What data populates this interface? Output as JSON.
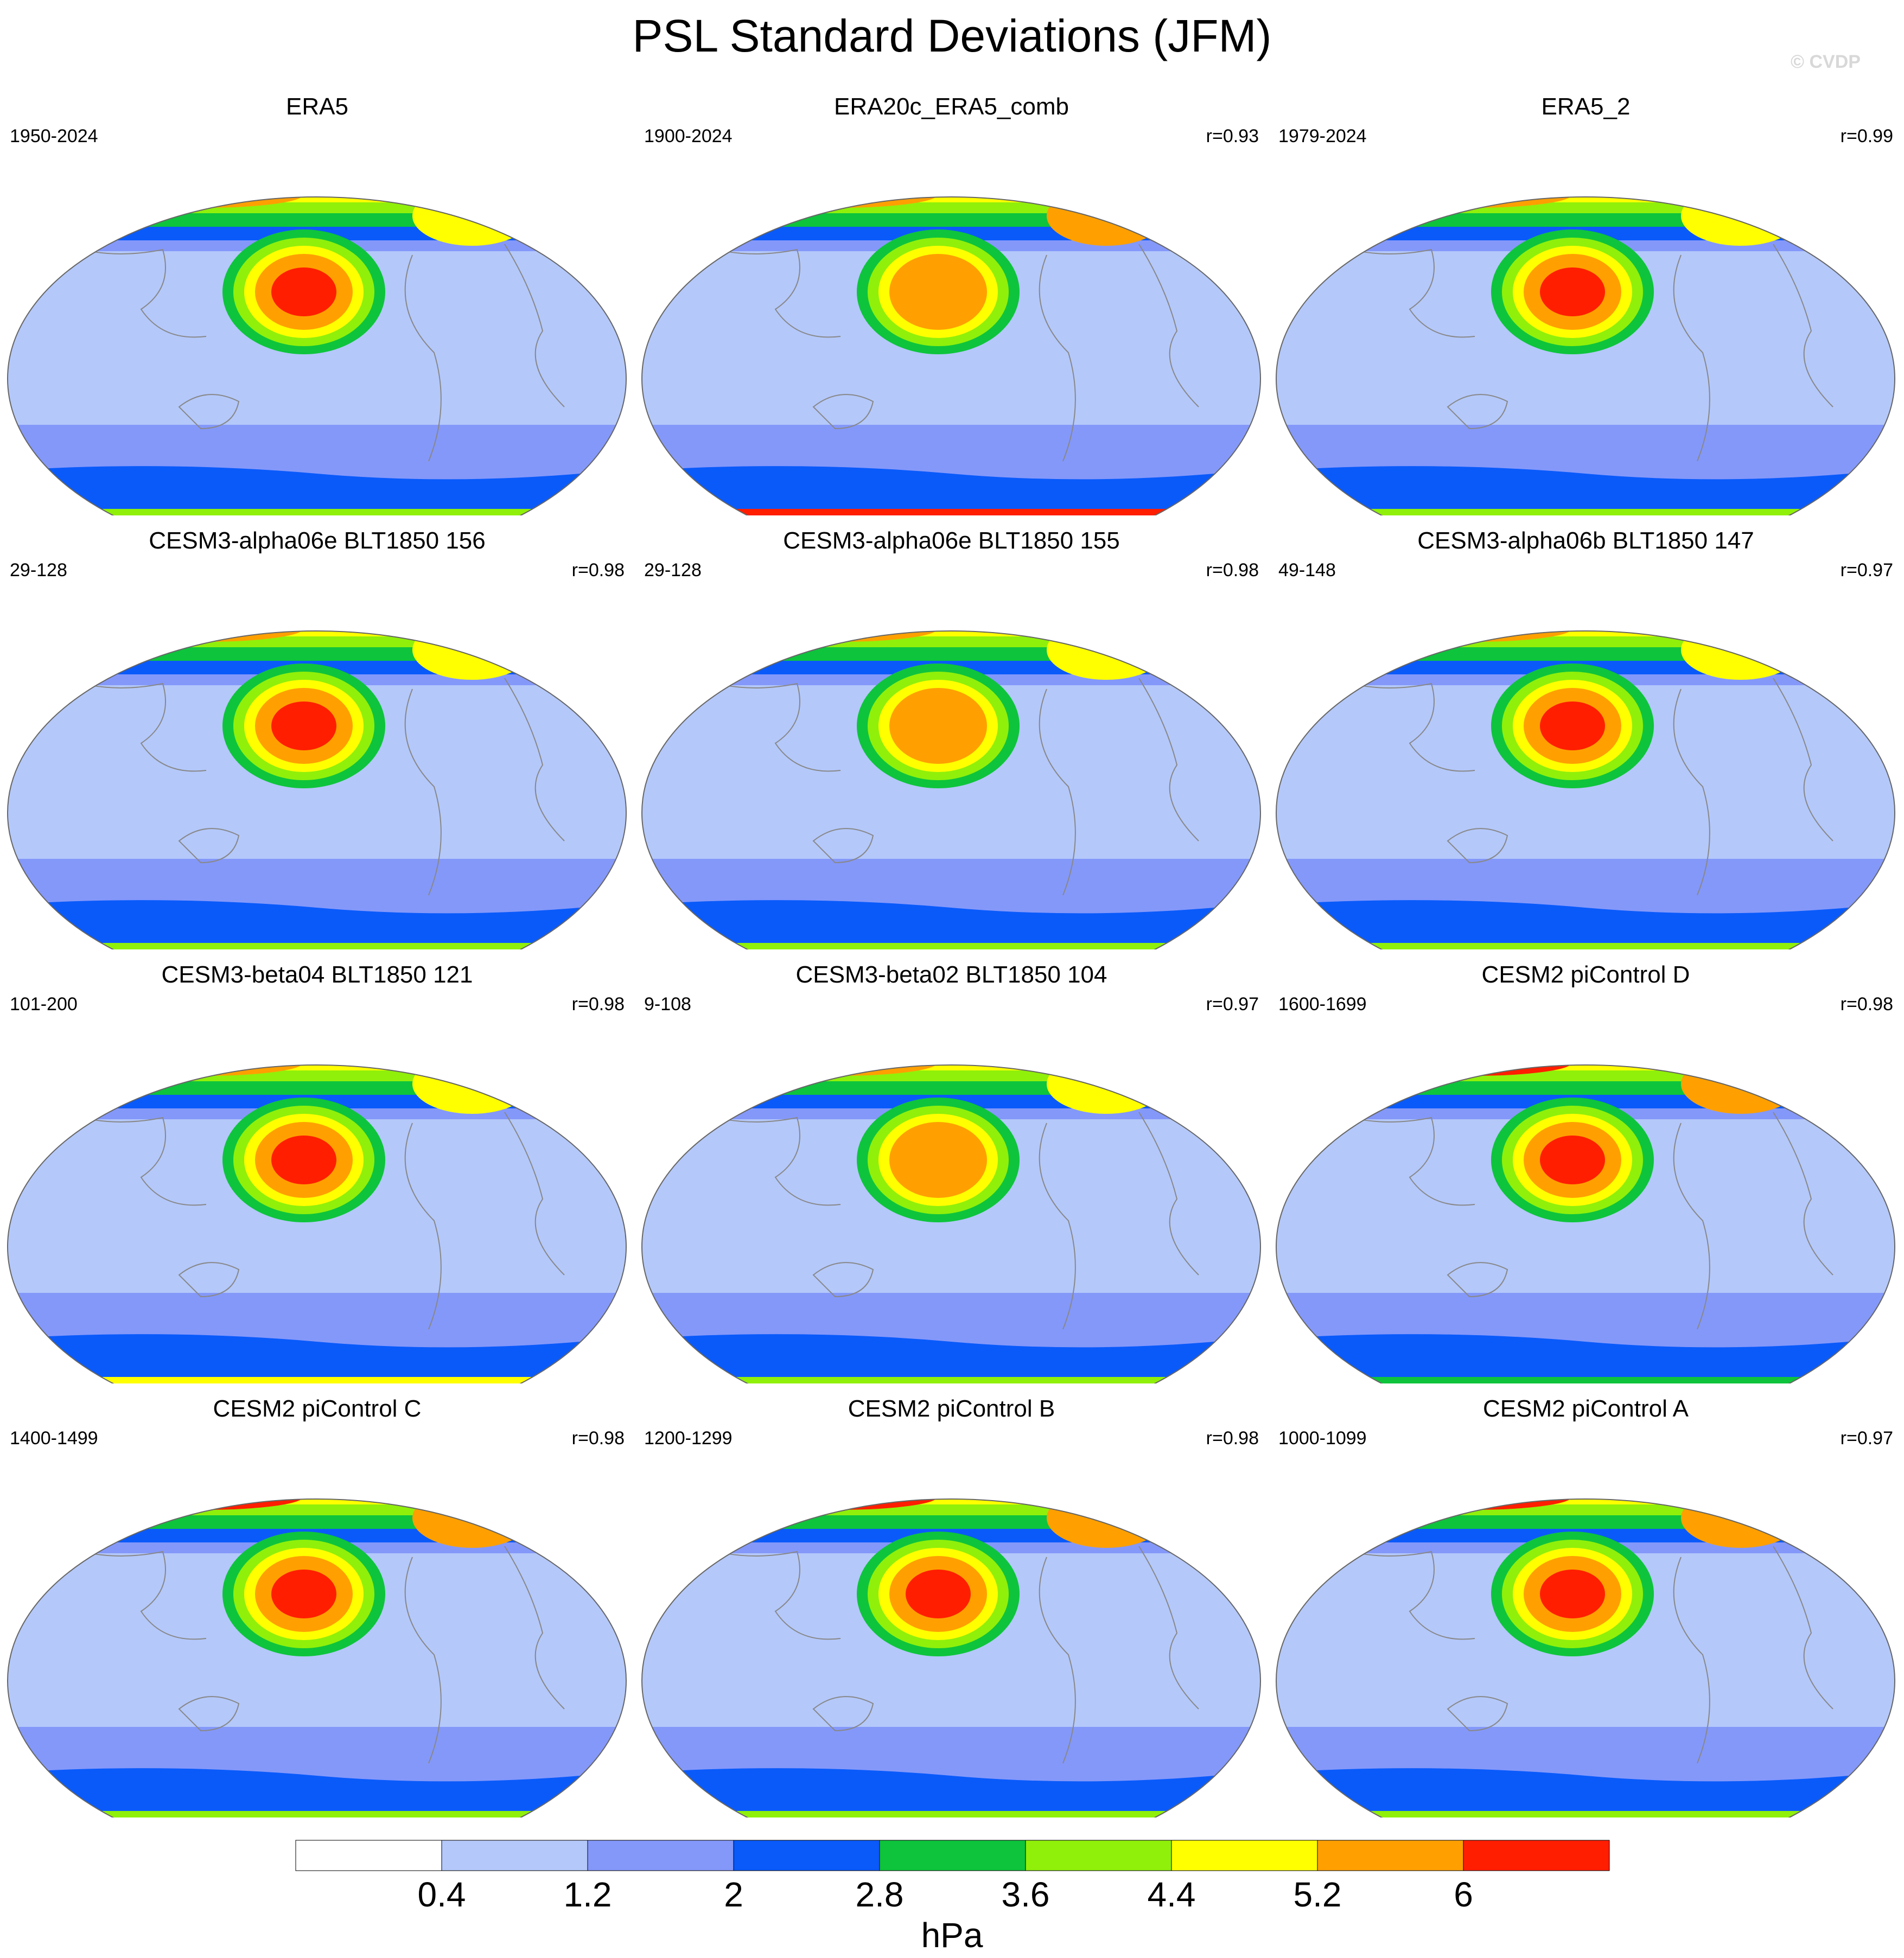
{
  "title": "PSL Standard Deviations (JFM)",
  "watermark": "© CVDP",
  "units": "hPa",
  "colorbar": {
    "levels": [
      "0.4",
      "1.2",
      "2",
      "2.8",
      "3.6",
      "4.4",
      "5.2",
      "6"
    ],
    "colors": [
      "#ffffff",
      "#b4c8fa",
      "#8498fa",
      "#0a5afa",
      "#0ec43c",
      "#90f00a",
      "#ffff00",
      "#ffa000",
      "#ff1e00"
    ]
  },
  "panels": [
    {
      "title": "ERA5",
      "period": "1950-2024",
      "corr": "",
      "npole": 5.7,
      "aleutian": 6.2,
      "south": 3.8
    },
    {
      "title": "ERA20c_ERA5_comb",
      "period": "1900-2024",
      "corr": "r=0.93",
      "npole": 5.9,
      "aleutian": 5.5,
      "south": 6.3
    },
    {
      "title": "ERA5_2",
      "period": "1979-2024",
      "corr": "r=0.99",
      "npole": 5.7,
      "aleutian": 6.3,
      "south": 3.6
    },
    {
      "title": "CESM3-alpha06e BLT1850 156",
      "period": "29-128",
      "corr": "r=0.98",
      "npole": 5.5,
      "aleutian": 6.1,
      "south": 3.8
    },
    {
      "title": "CESM3-alpha06e BLT1850 155",
      "period": "29-128",
      "corr": "r=0.98",
      "npole": 5.6,
      "aleutian": 5.9,
      "south": 3.8
    },
    {
      "title": "CESM3-alpha06b BLT1850 147",
      "period": "49-148",
      "corr": "r=0.97",
      "npole": 5.7,
      "aleutian": 6.1,
      "south": 4.0
    },
    {
      "title": "CESM3-beta04 BLT1850 121",
      "period": "101-200",
      "corr": "r=0.98",
      "npole": 5.7,
      "aleutian": 6.1,
      "south": 4.6
    },
    {
      "title": "CESM3-beta02 BLT1850 104",
      "period": "9-108",
      "corr": "r=0.97",
      "npole": 5.8,
      "aleutian": 5.9,
      "south": 4.0
    },
    {
      "title": "CESM2 piControl D",
      "period": "1600-1699",
      "corr": "r=0.98",
      "npole": 6.3,
      "aleutian": 6.4,
      "south": 3.4
    },
    {
      "title": "CESM2 piControl C",
      "period": "1400-1499",
      "corr": "r=0.98",
      "npole": 6.3,
      "aleutian": 6.4,
      "south": 3.8
    },
    {
      "title": "CESM2 piControl B",
      "period": "1200-1299",
      "corr": "r=0.98",
      "npole": 6.4,
      "aleutian": 6.5,
      "south": 4.0
    },
    {
      "title": "CESM2 piControl A",
      "period": "1000-1099",
      "corr": "r=0.97",
      "npole": 6.2,
      "aleutian": 6.3,
      "south": 3.6
    }
  ]
}
